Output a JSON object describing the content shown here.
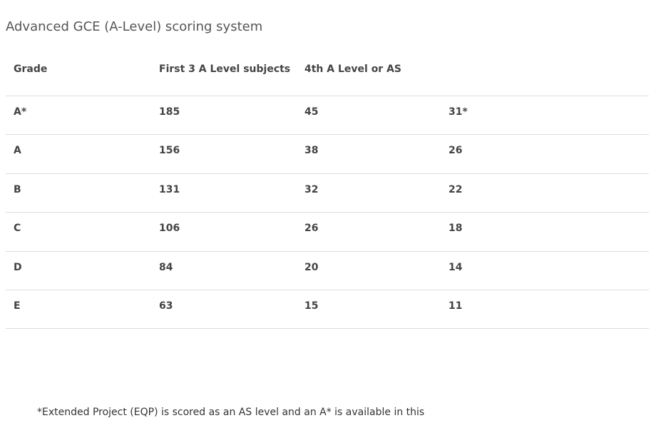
{
  "title": "Advanced GCE (A-Level) scoring system",
  "table": {
    "header": [
      "Grade",
      "First 3 A Level subjects",
      "4th A Level or AS"
    ],
    "rows": [
      [
        "A*",
        "185",
        "45",
        "31*"
      ],
      [
        "A",
        "156",
        "38",
        "26"
      ],
      [
        "B",
        "131",
        "32",
        "22"
      ],
      [
        "C",
        "106",
        "26",
        "18"
      ],
      [
        "D",
        "84",
        "20",
        "14"
      ],
      [
        "E",
        "63",
        "15",
        "11"
      ]
    ]
  },
  "footnote": "*Extended Project (EQP) is scored as an AS level and an A* is available in this"
}
